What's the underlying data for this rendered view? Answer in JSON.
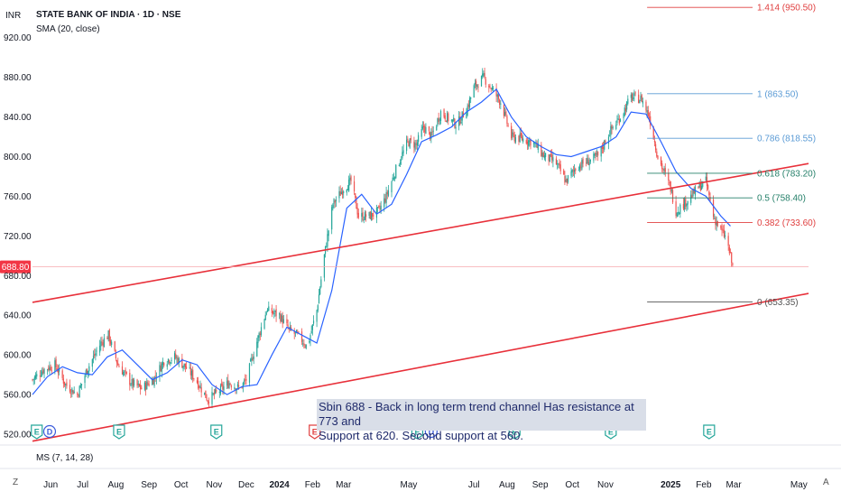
{
  "header": {
    "currency": "INR",
    "title": "STATE BANK OF INDIA · 1D · NSE",
    "indicator": "SMA (20, close)",
    "bottom_indicator": "MS (7, 14, 28)"
  },
  "note": {
    "line1": "Sbin 688 - Back in long term trend channel Has resistance at 773 and",
    "line2": "Support at 620. Second support at 560."
  },
  "price_label": "688.80",
  "corner_left": "Z",
  "corner_right": "A",
  "fib_labels": [
    {
      "text": "1.414 (950.50)",
      "price": 950.5,
      "color": "#e04040"
    },
    {
      "text": "1 (863.50)",
      "price": 863.5,
      "color": "#5b9bd5"
    },
    {
      "text": "0.786 (818.55)",
      "price": 818.55,
      "color": "#5b9bd5"
    },
    {
      "text": "0.618 (783.20)",
      "price": 783.2,
      "color": "#26806a"
    },
    {
      "text": "0.5 (758.40)",
      "price": 758.4,
      "color": "#26806a"
    },
    {
      "text": "0.382 (733.60)",
      "price": 733.6,
      "color": "#e04040"
    },
    {
      "text": "0 (653.35)",
      "price": 653.35,
      "color": "#555555"
    }
  ],
  "event_badges": [
    {
      "text": "E",
      "date": "2023-05-19",
      "color": "#26a69a"
    },
    {
      "text": "D",
      "date": "2023-05-31",
      "color": "#3b5bdb"
    },
    {
      "text": "E",
      "date": "2023-08-04",
      "color": "#26a69a"
    },
    {
      "text": "E",
      "date": "2023-11-03",
      "color": "#26a69a"
    },
    {
      "text": "E",
      "date": "2024-02-03",
      "color": "#e04040"
    },
    {
      "text": "E",
      "date": "2024-05-09",
      "color": "#26a69a"
    },
    {
      "text": "D",
      "date": "2024-05-22",
      "color": "#3b5bdb"
    },
    {
      "text": "E",
      "date": "2024-08-08",
      "color": "#26a69a"
    },
    {
      "text": "E",
      "date": "2024-11-06",
      "color": "#26a69a"
    },
    {
      "text": "E",
      "date": "2025-02-06",
      "color": "#26a69a"
    }
  ],
  "colors": {
    "up": "#26a69a",
    "down": "#ef5350",
    "sma": "#2962ff",
    "trendline": "#e8303a",
    "axis_text": "#131722",
    "price_tag": "#f23645"
  },
  "chart_data": {
    "type": "line",
    "title": "STATE BANK OF INDIA · 1D · NSE",
    "xlabel": "",
    "ylabel": "",
    "ylim": [
      510,
      958
    ],
    "xlim": [
      "2023-05-15",
      "2025-05-10"
    ],
    "y_ticks": [
      "920.00",
      "880.00",
      "840.00",
      "800.00",
      "760.00",
      "720.00",
      "680.00",
      "640.00",
      "600.00",
      "560.00",
      "520.00"
    ],
    "x_ticks": [
      {
        "label": "Jun",
        "date": "2023-06-01"
      },
      {
        "label": "Jul",
        "date": "2023-07-01"
      },
      {
        "label": "Aug",
        "date": "2023-08-01"
      },
      {
        "label": "Sep",
        "date": "2023-09-01"
      },
      {
        "label": "Oct",
        "date": "2023-10-01"
      },
      {
        "label": "Nov",
        "date": "2023-11-01"
      },
      {
        "label": "Dec",
        "date": "2023-12-01"
      },
      {
        "label": "2024",
        "date": "2024-01-01",
        "bold": true
      },
      {
        "label": "Feb",
        "date": "2024-02-01"
      },
      {
        "label": "Mar",
        "date": "2024-03-01"
      },
      {
        "label": "May",
        "date": "2024-05-01"
      },
      {
        "label": "Jul",
        "date": "2024-07-01"
      },
      {
        "label": "Aug",
        "date": "2024-08-01"
      },
      {
        "label": "Sep",
        "date": "2024-09-01"
      },
      {
        "label": "Oct",
        "date": "2024-10-01"
      },
      {
        "label": "Nov",
        "date": "2024-11-01"
      },
      {
        "label": "2025",
        "date": "2025-01-01",
        "bold": true
      },
      {
        "label": "Feb",
        "date": "2025-02-01"
      },
      {
        "label": "Mar",
        "date": "2025-03-01"
      },
      {
        "label": "May",
        "date": "2025-05-01"
      }
    ],
    "close_path": [
      [
        "2023-05-15",
        575
      ],
      [
        "2023-05-25",
        585
      ],
      [
        "2023-06-05",
        590
      ],
      [
        "2023-06-15",
        570
      ],
      [
        "2023-06-26",
        560
      ],
      [
        "2023-07-05",
        585
      ],
      [
        "2023-07-18",
        612
      ],
      [
        "2023-07-25",
        620
      ],
      [
        "2023-08-03",
        590
      ],
      [
        "2023-08-15",
        572
      ],
      [
        "2023-08-25",
        566
      ],
      [
        "2023-09-05",
        575
      ],
      [
        "2023-09-15",
        594
      ],
      [
        "2023-09-25",
        598
      ],
      [
        "2023-10-05",
        588
      ],
      [
        "2023-10-15",
        575
      ],
      [
        "2023-10-26",
        555
      ],
      [
        "2023-11-05",
        563
      ],
      [
        "2023-11-15",
        572
      ],
      [
        "2023-11-25",
        566
      ],
      [
        "2023-12-01",
        575
      ],
      [
        "2023-12-10",
        610
      ],
      [
        "2023-12-20",
        645
      ],
      [
        "2024-01-01",
        640
      ],
      [
        "2024-01-10",
        625
      ],
      [
        "2024-01-20",
        618
      ],
      [
        "2024-01-27",
        608
      ],
      [
        "2024-02-05",
        645
      ],
      [
        "2024-02-12",
        700
      ],
      [
        "2024-02-20",
        752
      ],
      [
        "2024-03-01",
        768
      ],
      [
        "2024-03-08",
        775
      ],
      [
        "2024-03-15",
        740
      ],
      [
        "2024-03-25",
        740
      ],
      [
        "2024-04-03",
        745
      ],
      [
        "2024-04-10",
        760
      ],
      [
        "2024-04-20",
        790
      ],
      [
        "2024-04-30",
        815
      ],
      [
        "2024-05-08",
        812
      ],
      [
        "2024-05-15",
        830
      ],
      [
        "2024-05-22",
        820
      ],
      [
        "2024-05-31",
        845
      ],
      [
        "2024-06-05",
        840
      ],
      [
        "2024-06-15",
        832
      ],
      [
        "2024-06-25",
        850
      ],
      [
        "2024-07-01",
        870
      ],
      [
        "2024-07-10",
        880
      ],
      [
        "2024-07-18",
        868
      ],
      [
        "2024-07-26",
        855
      ],
      [
        "2024-08-05",
        820
      ],
      [
        "2024-08-15",
        818
      ],
      [
        "2024-08-25",
        815
      ],
      [
        "2024-09-05",
        800
      ],
      [
        "2024-09-15",
        795
      ],
      [
        "2024-09-25",
        775
      ],
      [
        "2024-10-05",
        790
      ],
      [
        "2024-10-15",
        795
      ],
      [
        "2024-10-25",
        800
      ],
      [
        "2024-11-05",
        825
      ],
      [
        "2024-11-15",
        840
      ],
      [
        "2024-11-25",
        860
      ],
      [
        "2024-12-05",
        858
      ],
      [
        "2024-12-12",
        840
      ],
      [
        "2024-12-20",
        800
      ],
      [
        "2025-01-01",
        768
      ],
      [
        "2025-01-06",
        745
      ],
      [
        "2025-01-13",
        752
      ],
      [
        "2025-01-20",
        760
      ],
      [
        "2025-01-28",
        770
      ],
      [
        "2025-02-03",
        775
      ],
      [
        "2025-02-10",
        740
      ],
      [
        "2025-02-17",
        725
      ],
      [
        "2025-02-22",
        718
      ],
      [
        "2025-02-28",
        688.8
      ]
    ],
    "series": [
      {
        "name": "SMA (20, close)",
        "x": [
          "2023-05-15",
          "2023-05-29",
          "2023-06-12",
          "2023-06-26",
          "2023-07-10",
          "2023-07-24",
          "2023-08-07",
          "2023-08-21",
          "2023-09-04",
          "2023-09-18",
          "2023-10-02",
          "2023-10-16",
          "2023-10-30",
          "2023-11-13",
          "2023-11-27",
          "2023-12-11",
          "2023-12-25",
          "2024-01-08",
          "2024-01-22",
          "2024-02-05",
          "2024-02-19",
          "2024-03-04",
          "2024-03-18",
          "2024-04-01",
          "2024-04-15",
          "2024-04-29",
          "2024-05-13",
          "2024-05-27",
          "2024-06-10",
          "2024-06-24",
          "2024-07-08",
          "2024-07-22",
          "2024-08-05",
          "2024-08-19",
          "2024-09-02",
          "2024-09-16",
          "2024-09-30",
          "2024-10-14",
          "2024-10-28",
          "2024-11-11",
          "2024-11-25",
          "2024-12-09",
          "2024-12-23",
          "2025-01-06",
          "2025-01-20",
          "2025-02-03",
          "2025-02-17",
          "2025-02-26"
        ],
        "values": [
          560,
          578,
          588,
          582,
          580,
          598,
          605,
          590,
          575,
          582,
          595,
          590,
          570,
          560,
          568,
          570,
          600,
          628,
          620,
          612,
          665,
          748,
          762,
          742,
          752,
          782,
          815,
          822,
          830,
          845,
          855,
          868,
          840,
          820,
          810,
          802,
          800,
          805,
          810,
          820,
          845,
          843,
          815,
          785,
          768,
          760,
          740,
          730
        ]
      }
    ],
    "current_price": 688.8,
    "trend_channel": [
      {
        "name": "upper",
        "from": [
          "2023-05-15",
          653
        ],
        "to": [
          "2025-05-10",
          793
        ]
      },
      {
        "name": "lower",
        "from": [
          "2023-05-15",
          513
        ],
        "to": [
          "2025-05-10",
          662
        ]
      }
    ],
    "fibonacci": {
      "from_date": "2024-12-10",
      "levels": [
        {
          "ratio": "1.414",
          "price": 950.5
        },
        {
          "ratio": "1",
          "price": 863.5
        },
        {
          "ratio": "0.786",
          "price": 818.55
        },
        {
          "ratio": "0.618",
          "price": 783.2
        },
        {
          "ratio": "0.5",
          "price": 758.4
        },
        {
          "ratio": "0.382",
          "price": 733.6
        },
        {
          "ratio": "0",
          "price": 653.35
        }
      ]
    },
    "grid": false,
    "legend": "top-left"
  }
}
